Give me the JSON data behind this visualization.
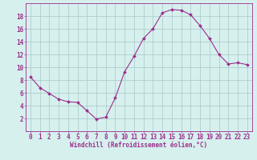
{
  "x": [
    0,
    1,
    2,
    3,
    4,
    5,
    6,
    7,
    8,
    9,
    10,
    11,
    12,
    13,
    14,
    15,
    16,
    17,
    18,
    19,
    20,
    21,
    22,
    23
  ],
  "y": [
    8.5,
    6.8,
    5.9,
    5.0,
    4.6,
    4.5,
    3.2,
    1.9,
    2.2,
    5.2,
    9.3,
    11.7,
    14.5,
    16.0,
    18.5,
    19.0,
    18.9,
    18.2,
    16.5,
    14.5,
    12.0,
    10.5,
    10.7,
    10.4
  ],
  "line_color": "#9B2E8C",
  "marker": "D",
  "marker_size": 2.0,
  "bg_color": "#D6F0EE",
  "grid_color": "#AECECE",
  "xlabel": "Windchill (Refroidissement éolien,°C)",
  "xlim": [
    -0.5,
    23.5
  ],
  "ylim": [
    0,
    20
  ],
  "yticks": [
    2,
    4,
    6,
    8,
    10,
    12,
    14,
    16,
    18
  ],
  "xticks": [
    0,
    1,
    2,
    3,
    4,
    5,
    6,
    7,
    8,
    9,
    10,
    11,
    12,
    13,
    14,
    15,
    16,
    17,
    18,
    19,
    20,
    21,
    22,
    23
  ],
  "axis_fontsize": 5.5,
  "tick_fontsize": 5.5
}
